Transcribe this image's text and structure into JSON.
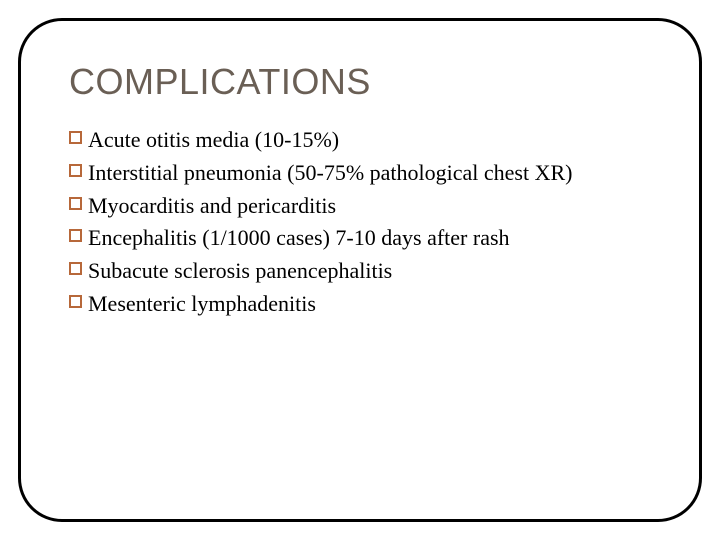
{
  "slide": {
    "title": "COMPLICATIONS",
    "title_color": "#6a5f55",
    "title_font": "Arial",
    "title_fontsize": 36,
    "frame_border_color": "#000000",
    "frame_border_width": 3,
    "frame_border_radius": 44,
    "bullet_border_color": "#b7683a",
    "bullet_fill": "#ffffff",
    "body_font": "Times New Roman",
    "body_fontsize": 22,
    "body_color": "#000000",
    "background_color": "#ffffff",
    "items": [
      "Acute otitis media (10-15%)",
      "Interstitial pneumonia (50-75% pathological chest XR)",
      " Myocarditis and pericarditis",
      "Encephalitis (1/1000 cases) 7-10 days after rash",
      "Subacute sclerosis panencephalitis",
      "Mesenteric lymphadenitis"
    ]
  }
}
